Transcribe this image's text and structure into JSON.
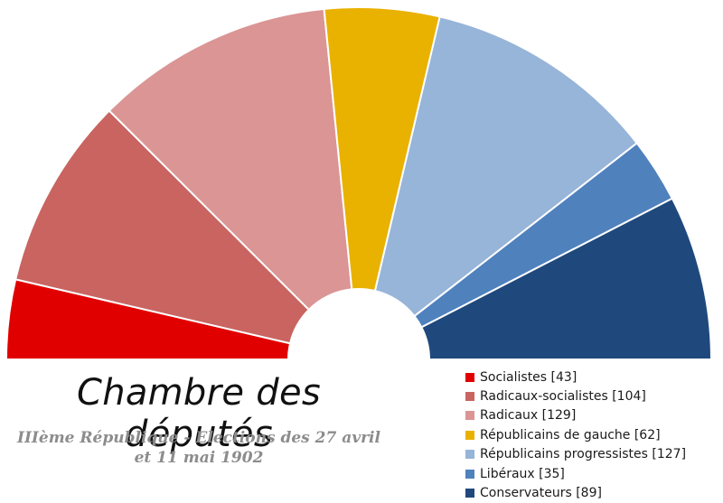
{
  "chart_data": {
    "type": "pie",
    "variant": "hemicycle",
    "title": "Chambre des députés",
    "subtitle_lines": [
      "IIIème République - Elections des 27 avril",
      "et 11 mai 1902"
    ],
    "series": [
      {
        "name": "Socialistes",
        "value": 43,
        "color": "#e10000",
        "legend": "Socialistes [43]"
      },
      {
        "name": "Radicaux-socialistes",
        "value": 104,
        "color": "#c96461",
        "legend": "Radicaux-socialistes [104]"
      },
      {
        "name": "Radicaux",
        "value": 129,
        "color": "#da9594",
        "legend": "Radicaux [129]"
      },
      {
        "name": "Républicains de gauche",
        "value": 62,
        "color": "#e9b100",
        "legend": "Républicains de gauche [62]"
      },
      {
        "name": "Républicains progressistes",
        "value": 127,
        "color": "#97b4d9",
        "legend": "Républicains progressistes [127]"
      },
      {
        "name": "Libéraux",
        "value": 35,
        "color": "#4f81bd",
        "legend": "Libéraux [35]"
      },
      {
        "name": "Conservateurs",
        "value": 89,
        "color": "#1f497d",
        "legend": "Conservateurs [89]"
      }
    ]
  }
}
